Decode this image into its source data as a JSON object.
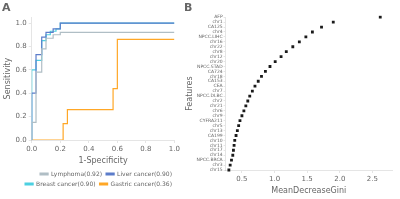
{
  "chart_data": [
    {
      "type": "line",
      "title": "A",
      "xlabel": "1-Specificity",
      "ylabel": "Sensitivity",
      "series": [
        {
          "name": "Lymphoma(0.92)",
          "color": "#b0bec5",
          "x": [
            0.0,
            0.0,
            0.03,
            0.03,
            0.07,
            0.07,
            0.1,
            0.1,
            0.15,
            0.15,
            0.2,
            0.2,
            1.0
          ],
          "values": [
            0.0,
            0.15,
            0.15,
            0.58,
            0.58,
            0.78,
            0.78,
            0.87,
            0.87,
            0.9,
            0.9,
            0.92,
            0.92
          ]
        },
        {
          "name": "Liver cancer(0.90)",
          "color": "#5c7dca",
          "x": [
            0.0,
            0.0,
            0.03,
            0.03,
            0.07,
            0.07,
            0.1,
            0.1,
            0.15,
            0.15,
            0.2,
            0.2,
            1.0
          ],
          "values": [
            0.0,
            0.4,
            0.4,
            0.73,
            0.73,
            0.88,
            0.88,
            0.92,
            0.92,
            0.95,
            0.95,
            1.0,
            1.0
          ]
        },
        {
          "name": "Breast cancer(0.90)",
          "color": "#4dd0e1",
          "x": [
            0.0,
            0.0,
            0.03,
            0.03,
            0.07,
            0.07,
            0.1,
            0.1,
            0.13,
            0.13,
            0.17,
            0.17,
            0.2,
            0.2,
            1.0
          ],
          "values": [
            0.0,
            0.6,
            0.6,
            0.68,
            0.68,
            0.85,
            0.85,
            0.9,
            0.9,
            0.93,
            0.93,
            0.95,
            0.95,
            1.0,
            1.0
          ]
        },
        {
          "name": "Gastric cancer(0.36)",
          "color": "#ffa726",
          "x": [
            0.0,
            0.0,
            0.22,
            0.22,
            0.25,
            0.25,
            0.57,
            0.57,
            0.6,
            0.6,
            1.0
          ],
          "values": [
            0.0,
            0.0,
            0.0,
            0.14,
            0.14,
            0.26,
            0.26,
            0.44,
            0.44,
            0.86,
            0.86
          ]
        }
      ],
      "xlim": [
        0.0,
        1.0
      ],
      "ylim": [
        0.0,
        1.05
      ],
      "xticks": [
        {
          "value": 0.0,
          "label": "0.0"
        },
        0.2,
        0.4,
        0.6,
        0.8,
        {
          "value": 1.0,
          "label": "1.0"
        }
      ],
      "yticks": [
        {
          "value": 0.0,
          "label": "0.0"
        },
        0.2,
        0.4,
        0.6,
        0.8,
        {
          "value": 1.0,
          "label": "1.0"
        }
      ],
      "legend": "lower right",
      "grid": false
    },
    {
      "type": "scatter",
      "title": "B",
      "xlabel": "MeanDecreaseGini",
      "ylabel": "Features",
      "orientation": "horizontal",
      "categories": [
        "chr15",
        "chr3",
        "NPCC.BRCA",
        "chr14",
        "chr17",
        "chr11",
        "chr10",
        "CA199",
        "chr13",
        "chr5",
        "CYFRA211",
        "chr9",
        "chr6",
        "chr21",
        "chr2",
        "NPCC.DLBC",
        "chr7",
        "CEA",
        "CA153",
        "chr18",
        "CA724",
        "NPCC.STAD",
        "chr20",
        "chr12",
        "chr8",
        "chr22",
        "chr16",
        "NPCC.LIHC",
        "chr4",
        "CA125",
        "chr1",
        "AFP"
      ],
      "values": [
        0.3,
        0.32,
        0.34,
        0.36,
        0.37,
        0.38,
        0.39,
        0.41,
        0.43,
        0.45,
        0.47,
        0.5,
        0.53,
        0.56,
        0.59,
        0.62,
        0.66,
        0.7,
        0.75,
        0.8,
        0.86,
        0.93,
        1.01,
        1.1,
        1.18,
        1.28,
        1.38,
        1.48,
        1.58,
        1.72,
        1.9,
        2.62
      ],
      "color": "#1a1a1a",
      "marker": "square",
      "xlim": [
        0.25,
        2.8
      ],
      "xticks": [
        0.5,
        {
          "value": 1.0,
          "label": "1.0"
        },
        1.5,
        {
          "value": 2.0,
          "label": "2.0"
        },
        2.5
      ],
      "grid": false
    }
  ]
}
